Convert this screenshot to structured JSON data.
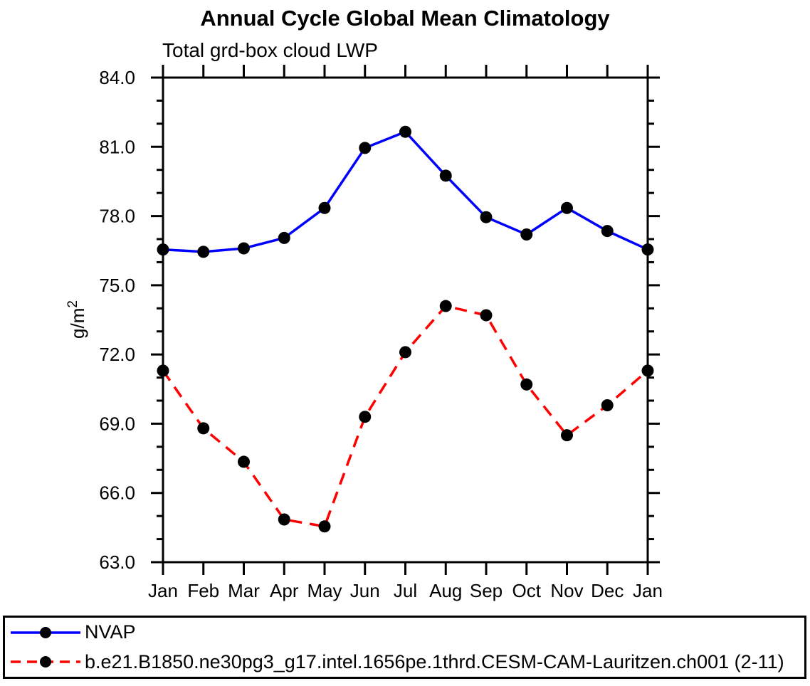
{
  "chart_data": {
    "type": "line",
    "title": "Annual Cycle Global Mean Climatology",
    "subtitle": "Total grd-box cloud LWP",
    "xlabel": "",
    "ylabel": "g/m²",
    "ylim": [
      63.0,
      84.0
    ],
    "ytick_major_interval": 3.0,
    "ytick_minor_interval": 1.0,
    "ytick_labels": [
      "84.0",
      "81.0",
      "78.0",
      "75.0",
      "72.0",
      "69.0",
      "66.0",
      "63.0"
    ],
    "categories": [
      "Jan",
      "Feb",
      "Mar",
      "Apr",
      "May",
      "Jun",
      "Jul",
      "Aug",
      "Sep",
      "Oct",
      "Nov",
      "Dec",
      "Jan"
    ],
    "grid": false,
    "legend_position": "bottom",
    "axis_color": "#000000",
    "marker_color": "#000000",
    "series": [
      {
        "name": "NVAP",
        "color": "#0000ff",
        "line_style": "solid",
        "marker": "filled-circle",
        "values": [
          76.55,
          76.45,
          76.6,
          77.05,
          78.35,
          80.95,
          81.65,
          79.75,
          77.95,
          77.2,
          78.35,
          77.35,
          76.55
        ]
      },
      {
        "name": "b.e21.B1850.ne30pg3_g17.intel.1656pe.1thrd.CESM-CAM-Lauritzen.ch001 (2-11)",
        "color": "#ff0000",
        "line_style": "dashed",
        "marker": "filled-circle",
        "values": [
          71.3,
          68.8,
          67.35,
          64.85,
          64.55,
          69.3,
          72.1,
          74.1,
          73.7,
          70.7,
          68.5,
          69.8,
          71.3
        ]
      }
    ]
  }
}
